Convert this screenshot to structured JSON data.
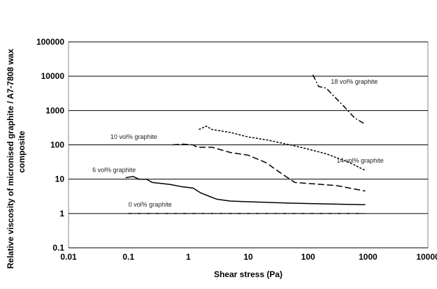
{
  "chart_data": {
    "type": "line",
    "xlabel": "Shear stress (Pa)",
    "ylabel_line1": "Relative viscosity of micronised graphite / A7-7808 wax",
    "ylabel_line2": "composite",
    "x_scale": "log",
    "y_scale": "log",
    "xlim": [
      0.01,
      10000
    ],
    "ylim": [
      0.1,
      100000
    ],
    "x_ticks": [
      0.01,
      0.1,
      1,
      10,
      100,
      1000,
      10000
    ],
    "x_tick_labels": [
      "0.01",
      "0.1",
      "1",
      "10",
      "100",
      "1000",
      "10000"
    ],
    "y_ticks": [
      0.1,
      1,
      10,
      100,
      1000,
      10000,
      100000
    ],
    "y_tick_labels": [
      "0.1",
      "1",
      "10",
      "100",
      "1000",
      "10000",
      "100000"
    ],
    "grid": "horizontal major gridlines",
    "legend": "none; series labelled inline",
    "series": [
      {
        "name": "0 vol% graphite",
        "style": "dash-dot-dot",
        "label_at": [
          0.1,
          1.6
        ],
        "points": [
          [
            0.1,
            1
          ],
          [
            1,
            1
          ],
          [
            10,
            1
          ],
          [
            100,
            1
          ],
          [
            900,
            1
          ]
        ]
      },
      {
        "name": "6 vol% graphite",
        "style": "solid",
        "label_at": [
          0.025,
          16
        ],
        "points": [
          [
            0.09,
            11
          ],
          [
            0.12,
            12
          ],
          [
            0.15,
            10
          ],
          [
            0.2,
            10
          ],
          [
            0.25,
            8
          ],
          [
            0.5,
            7
          ],
          [
            0.8,
            6
          ],
          [
            1.2,
            5.5
          ],
          [
            1.6,
            4
          ],
          [
            2.2,
            3.2
          ],
          [
            3,
            2.6
          ],
          [
            5,
            2.3
          ],
          [
            10,
            2.2
          ],
          [
            50,
            2.0
          ],
          [
            200,
            1.9
          ],
          [
            900,
            1.8
          ]
        ]
      },
      {
        "name": "10 vol% graphite",
        "style": "long-dash",
        "label_at": [
          0.05,
          150
        ],
        "points": [
          [
            0.55,
            100
          ],
          [
            0.8,
            105
          ],
          [
            1.2,
            100
          ],
          [
            1.4,
            85
          ],
          [
            2.5,
            85
          ],
          [
            5,
            60
          ],
          [
            10,
            50
          ],
          [
            20,
            30
          ],
          [
            35,
            15
          ],
          [
            60,
            8
          ],
          [
            100,
            7.5
          ],
          [
            300,
            6.5
          ],
          [
            900,
            4.5
          ]
        ]
      },
      {
        "name": "14 vol% graphite",
        "style": "short-dash",
        "label_at": [
          300,
          30
        ],
        "points": [
          [
            1.5,
            280
          ],
          [
            2,
            350
          ],
          [
            2.5,
            280
          ],
          [
            5,
            230
          ],
          [
            10,
            170
          ],
          [
            20,
            140
          ],
          [
            50,
            100
          ],
          [
            100,
            75
          ],
          [
            200,
            55
          ],
          [
            500,
            30
          ],
          [
            900,
            18
          ]
        ]
      },
      {
        "name": "18 vol% graphite",
        "style": "dash-dot",
        "label_at": [
          240,
          6000
        ],
        "points": [
          [
            120,
            11000
          ],
          [
            150,
            5000
          ],
          [
            200,
            4500
          ],
          [
            250,
            3000
          ],
          [
            400,
            1300
          ],
          [
            600,
            600
          ],
          [
            900,
            400
          ]
        ]
      }
    ]
  }
}
